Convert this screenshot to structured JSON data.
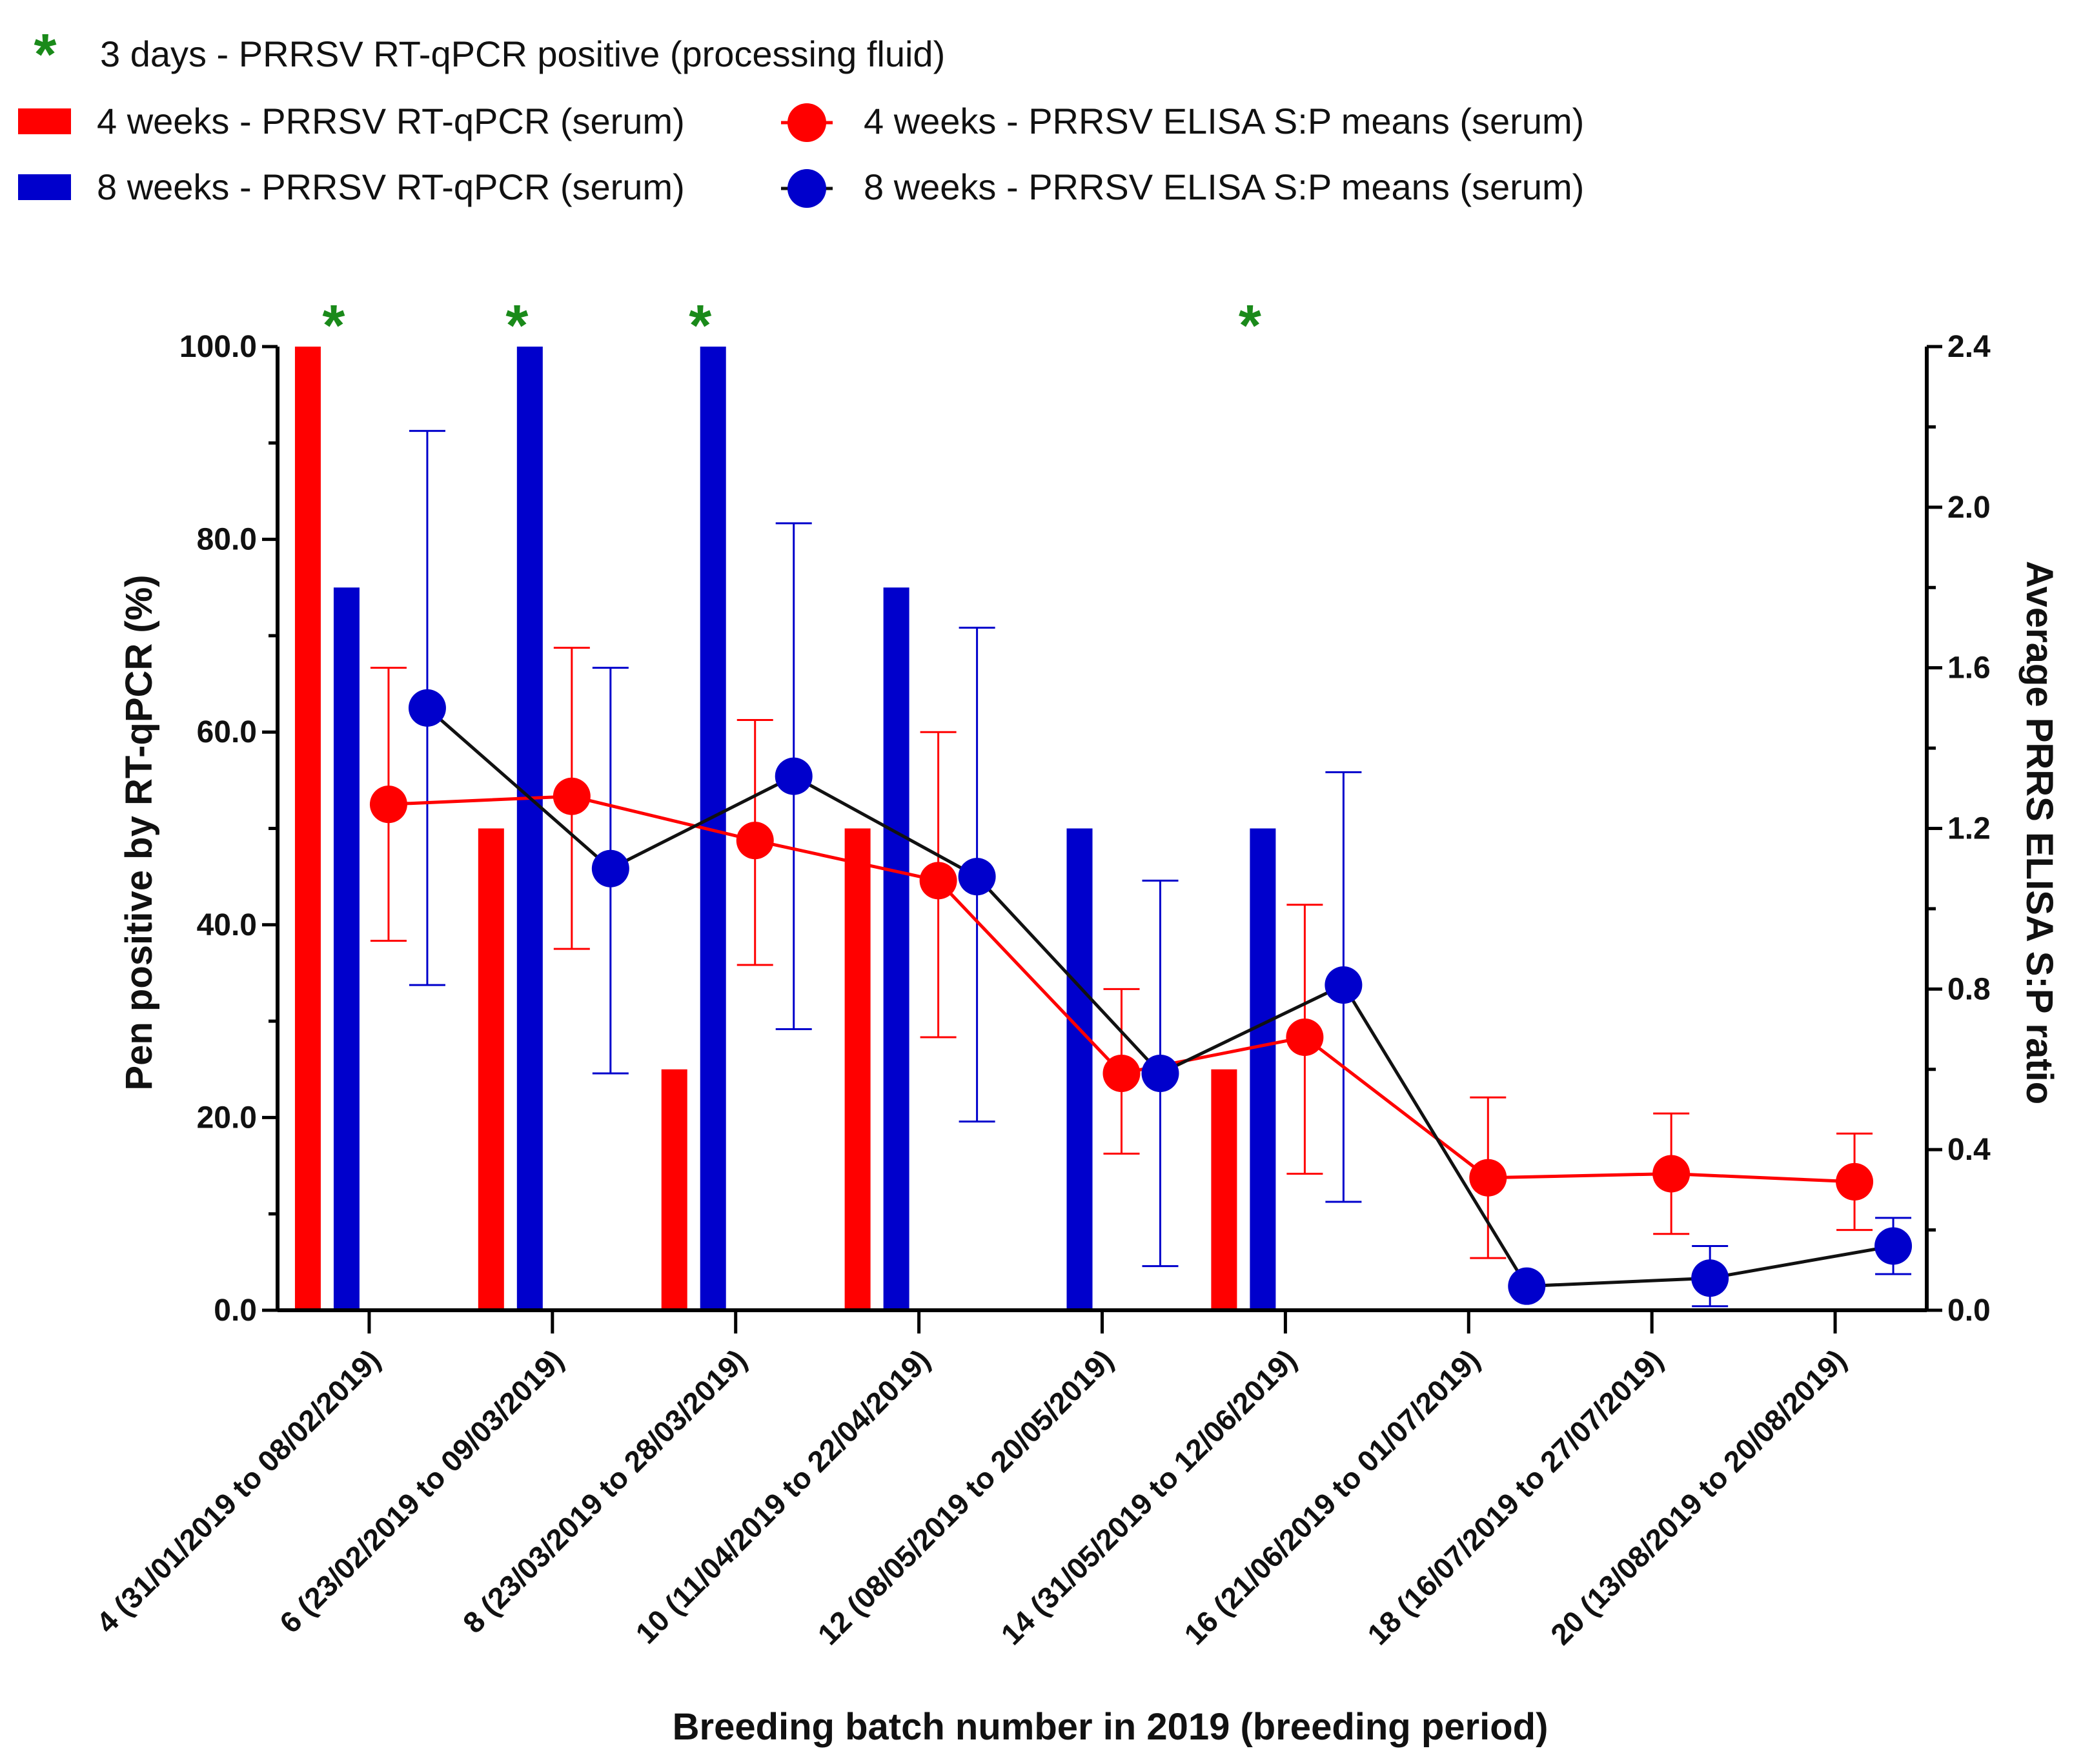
{
  "chart_data": {
    "type": "bar",
    "title": "",
    "xlabel": "Breeding batch number in 2019 (breeding period)",
    "ylabel_left": "Pen positive by RT-qPCR (%)",
    "ylabel_right": "Average PRRS ELISA S:P ratio",
    "ylim_left": [
      0,
      100
    ],
    "ylim_right": [
      0,
      2.4
    ],
    "yticks_left": [
      "0.0",
      "20.0",
      "40.0",
      "60.0",
      "80.0",
      "100.0"
    ],
    "yticks_right": [
      "0.0",
      "0.4",
      "0.8",
      "1.2",
      "1.6",
      "2.0",
      "2.4"
    ],
    "legend_placement": "top",
    "categories": [
      "4 (31/01/2019 to 08/02/2019)",
      "6 (23/02/2019 to 09/03/2019)",
      "8 (23/03/2019 to 28/03/2019)",
      "10 (11/04/2019 to 22/04/2019)",
      "12 (08/05/2019 to 20/05/2019)",
      "14 (31/05/2019 to 12/06/2019)",
      "16 (21/06/2019 to 01/07/2019)",
      "18 (16/07/2019 to 27/07/2019)",
      "20 (13/08/2019 to 20/08/2019)"
    ],
    "series": [
      {
        "name": "4 weeks - PRRSV RT-qPCR (serum)",
        "kind": "bar",
        "axis": "left",
        "color": "#ff0000",
        "values": [
          100,
          50,
          25,
          50,
          0,
          25,
          0,
          0,
          0
        ]
      },
      {
        "name": "8 weeks - PRRSV RT-qPCR (serum)",
        "kind": "bar",
        "axis": "left",
        "color": "#0000cc",
        "values": [
          75,
          100,
          100,
          75,
          50,
          50,
          0,
          0,
          0
        ]
      },
      {
        "name": "4 weeks  - PRRSV ELISA S:P means (serum)",
        "kind": "line",
        "axis": "right",
        "color": "#ff0000",
        "line_color": "#ff0000",
        "values": [
          1.26,
          1.28,
          1.17,
          1.07,
          0.59,
          0.68,
          0.33,
          0.34,
          0.32
        ],
        "err_low": [
          0.92,
          0.9,
          0.86,
          0.68,
          0.39,
          0.34,
          0.13,
          0.19,
          0.2
        ],
        "err_high": [
          1.6,
          1.65,
          1.47,
          1.44,
          0.8,
          1.01,
          0.53,
          0.49,
          0.44
        ]
      },
      {
        "name": "8 weeks  - PRRSV ELISA S:P means (serum)",
        "kind": "line",
        "axis": "right",
        "color": "#0000cc",
        "line_color": "#111111",
        "values": [
          1.5,
          1.1,
          1.33,
          1.08,
          0.59,
          0.81,
          0.06,
          0.08,
          0.16
        ],
        "err_low": [
          0.81,
          0.59,
          0.7,
          0.47,
          0.11,
          0.27,
          null,
          0.01,
          0.09
        ],
        "err_high": [
          2.19,
          1.6,
          1.96,
          1.7,
          1.07,
          1.34,
          null,
          0.16,
          0.23
        ]
      }
    ],
    "processing_fluid_positive": {
      "name": "3 days - PRRSV  RT-qPCR positive (processing fluid)",
      "symbol": "*",
      "color": "#1a8a1a",
      "batches": [
        0,
        1,
        2,
        5
      ]
    }
  }
}
